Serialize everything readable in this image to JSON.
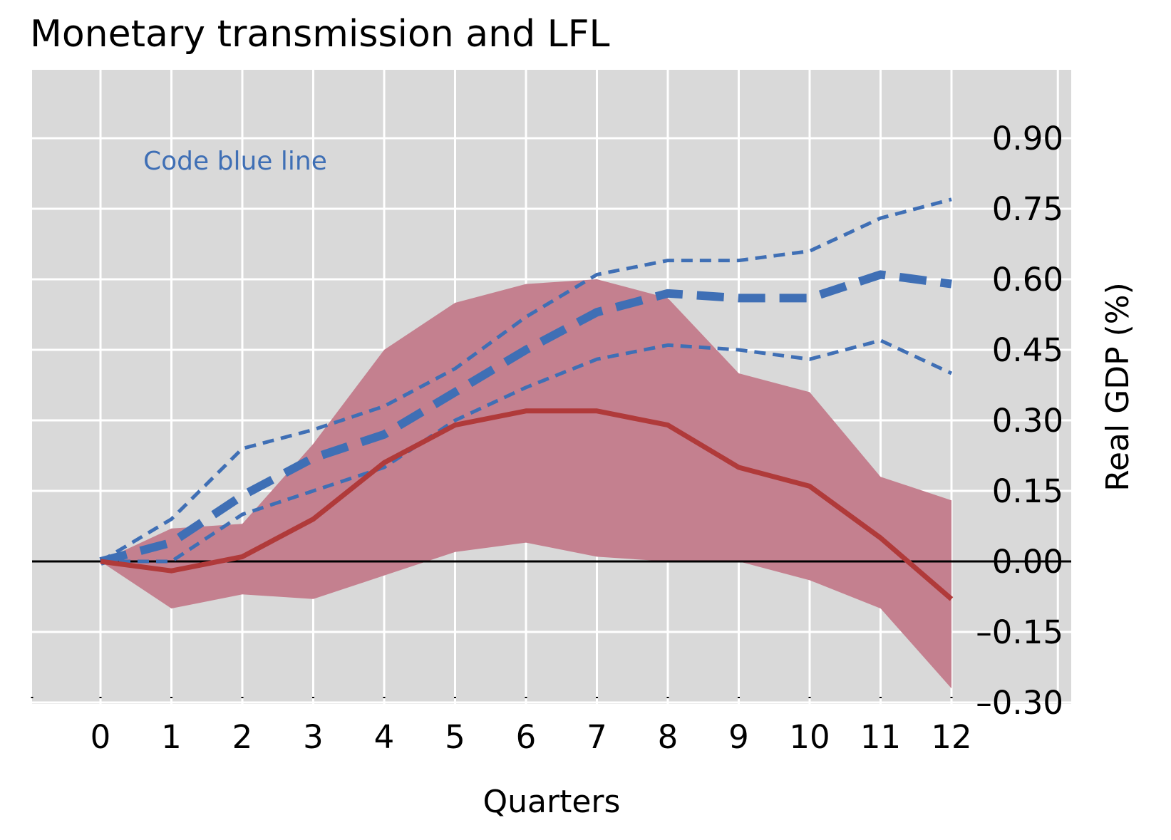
{
  "chart_data": {
    "type": "line",
    "title": "Monetary transmission and LFL",
    "xlabel": "Quarters",
    "ylabel": "Real GDP (%)",
    "annotation": "Code blue line",
    "x": [
      0,
      1,
      2,
      3,
      4,
      5,
      6,
      7,
      8,
      9,
      10,
      11,
      12
    ],
    "x_tick_labels": [
      "0",
      "1",
      "2",
      "3",
      "4",
      "5",
      "6",
      "7",
      "8",
      "9",
      "10",
      "11",
      "12"
    ],
    "y_ticks": [
      0.9,
      0.75,
      0.6,
      0.45,
      0.3,
      0.15,
      0.0,
      -0.15,
      -0.3
    ],
    "y_tick_labels": [
      "0.90",
      "0.75",
      "0.60",
      "0.45",
      "0.30",
      "0.15",
      "0.00",
      "–0.15",
      "–0.30"
    ],
    "xlim": [
      -1,
      13.5
    ],
    "ylim": [
      -0.3,
      1.05
    ],
    "y_axis_side": "right",
    "grid": true,
    "zero_line": 0.0,
    "band": {
      "upper": [
        0.0,
        0.07,
        0.08,
        0.25,
        0.45,
        0.55,
        0.59,
        0.6,
        0.56,
        0.4,
        0.36,
        0.18,
        0.13
      ],
      "lower": [
        0.0,
        -0.1,
        -0.07,
        -0.08,
        -0.03,
        0.02,
        0.04,
        0.01,
        0.0,
        0.0,
        -0.04,
        -0.1,
        -0.27
      ],
      "color": "#c4808f"
    },
    "series": [
      {
        "role": "central-red-solid",
        "values": [
          0.0,
          -0.02,
          0.01,
          0.09,
          0.21,
          0.29,
          0.32,
          0.32,
          0.29,
          0.2,
          0.16,
          0.05,
          -0.08
        ],
        "color": "#b03a3a"
      },
      {
        "role": "blue-central-dashed",
        "values": [
          0.0,
          0.04,
          0.14,
          0.22,
          0.27,
          0.36,
          0.45,
          0.53,
          0.57,
          0.56,
          0.56,
          0.61,
          0.59
        ],
        "color": "#3f6fb5"
      },
      {
        "role": "blue-upper-dashed",
        "values": [
          0.0,
          0.09,
          0.24,
          0.28,
          0.33,
          0.41,
          0.52,
          0.61,
          0.64,
          0.64,
          0.66,
          0.73,
          0.77
        ],
        "color": "#3f6fb5"
      },
      {
        "role": "blue-lower-dashed",
        "values": [
          0.0,
          0.0,
          0.1,
          0.15,
          0.2,
          0.3,
          0.37,
          0.43,
          0.46,
          0.45,
          0.43,
          0.47,
          0.4
        ],
        "color": "#3f6fb5"
      }
    ]
  }
}
